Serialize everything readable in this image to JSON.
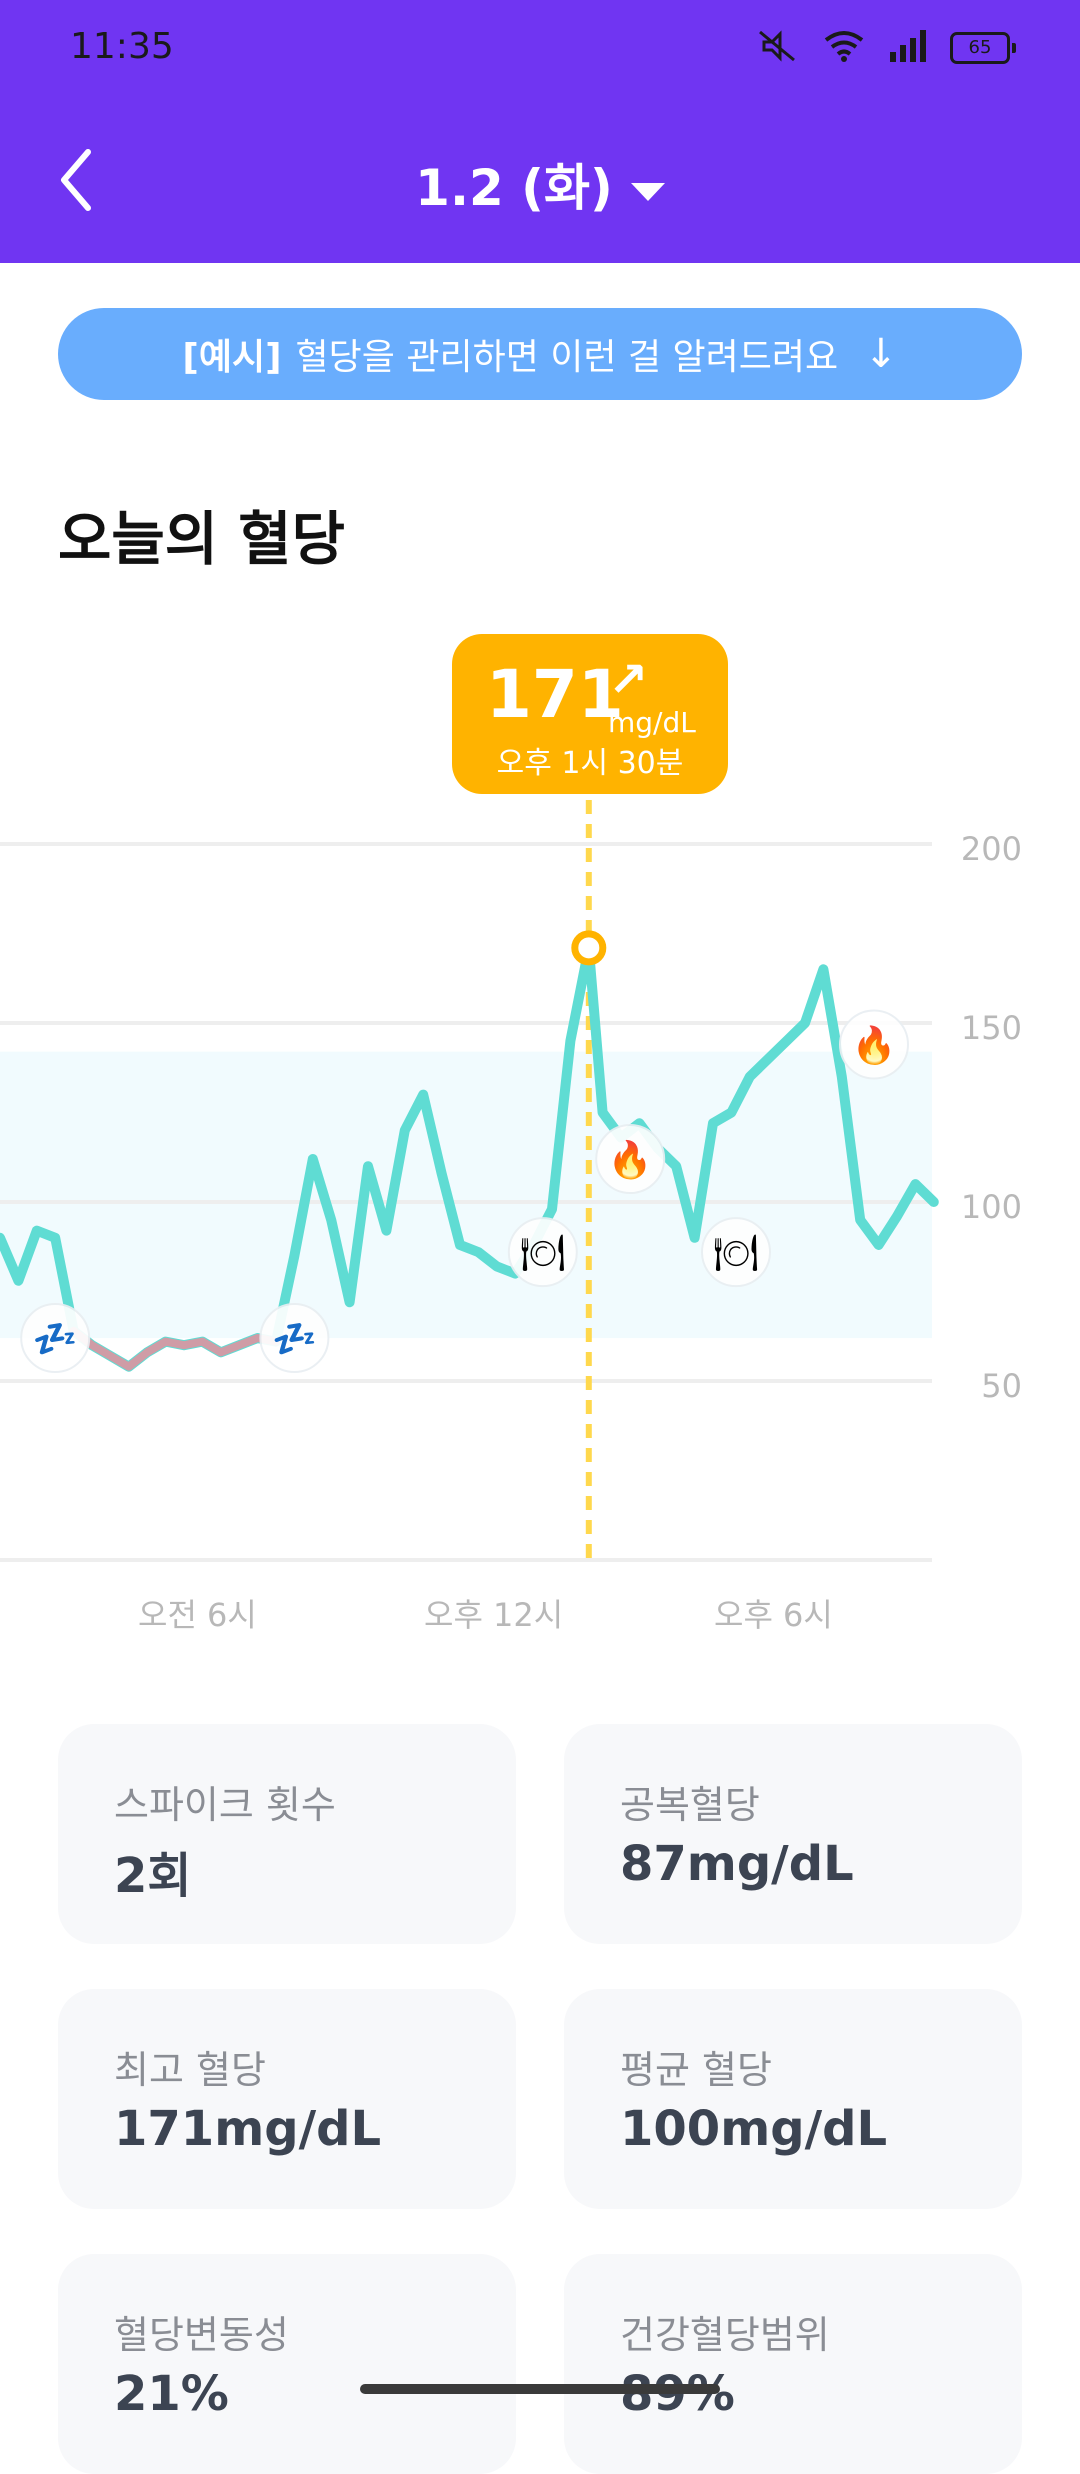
{
  "status_bar": {
    "time": "11:35",
    "battery": "65"
  },
  "header": {
    "date": "1.2 (화)"
  },
  "banner": {
    "tag": "[예시]",
    "text": "혈당을 관리하면 이런 걸 알려드려요"
  },
  "section_title": "오늘의 혈당",
  "tooltip": {
    "value": "171",
    "trend": "↗",
    "unit": "mg/dL",
    "time": "오후 1시 30분"
  },
  "chart_data": {
    "type": "line",
    "title": "",
    "xlabel": "",
    "ylabel": "",
    "x_tick_labels": [
      "오전 6시",
      "오후 12시",
      "오후 6시"
    ],
    "y_ticks": [
      200,
      150,
      100,
      50
    ],
    "ylim": [
      0,
      200
    ],
    "target_range": [
      62,
      142
    ],
    "highlight_point": {
      "time": "오후 1시 30분",
      "value": 171
    },
    "series": [
      {
        "x_hours": [
          0.0,
          0.4,
          0.8,
          1.2,
          1.6,
          2.0,
          2.4,
          2.8,
          3.2,
          3.6,
          4.0,
          4.4,
          4.8,
          5.2,
          5.6,
          6.0,
          6.4,
          6.8,
          7.2,
          7.6,
          8.0,
          8.4,
          8.8,
          9.2,
          9.6,
          10.0,
          10.4,
          10.8,
          11.2,
          11.6,
          12.0,
          12.4,
          12.8,
          13.1,
          13.5,
          13.9,
          14.3,
          14.7,
          15.1,
          15.5,
          15.9,
          16.3,
          16.7,
          17.1,
          17.5,
          17.9,
          18.3,
          18.7,
          19.1,
          19.5,
          19.9,
          20.3
        ],
        "values": [
          90,
          78,
          92,
          90,
          64,
          60,
          57,
          54,
          58,
          61,
          60,
          61,
          58,
          60,
          62,
          61,
          85,
          112,
          95,
          72,
          110,
          92,
          120,
          130,
          108,
          88,
          86,
          82,
          80,
          88,
          98,
          145,
          171,
          125,
          118,
          122,
          115,
          110,
          90,
          122,
          125,
          135,
          140,
          145,
          150,
          165,
          135,
          95,
          88,
          96,
          105,
          100
        ]
      }
    ],
    "markers": [
      {
        "icon": "sleep-icon",
        "x_hours": 1.2,
        "value": 62
      },
      {
        "icon": "sleep-icon",
        "x_hours": 6.4,
        "value": 62
      },
      {
        "icon": "meal-icon",
        "x_hours": 11.8,
        "value": 86
      },
      {
        "icon": "flame-icon",
        "x_hours": 13.7,
        "value": 112
      },
      {
        "icon": "meal-icon",
        "x_hours": 16.0,
        "value": 86
      },
      {
        "icon": "flame-icon",
        "x_hours": 19.0,
        "value": 144
      }
    ]
  },
  "cards": [
    {
      "label": "스파이크 횟수",
      "value": "2회"
    },
    {
      "label": "공복혈당",
      "value": "87mg/dL"
    },
    {
      "label": "최고 혈당",
      "value": "171mg/dL"
    },
    {
      "label": "평균 혈당",
      "value": "100mg/dL"
    },
    {
      "label": "혈당변동성",
      "value": "21%"
    },
    {
      "label": "건강혈당범위",
      "value": "89%"
    }
  ],
  "colors": {
    "primary": "#7035F2",
    "banner": "#69ADFD",
    "accent": "#FFB300",
    "line": "#5FDCD3",
    "card": "#F7F8FA"
  }
}
